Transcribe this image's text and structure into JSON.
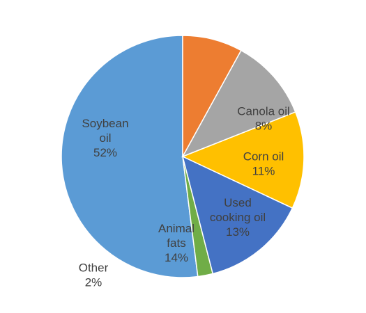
{
  "chart_data": {
    "type": "pie",
    "title": "",
    "start": "12 o'clock",
    "direction": "counterclockwise, starting with Soybean oil",
    "slices": [
      {
        "label_lines": [
          "Soybean",
          "oil"
        ],
        "value_text": "52%",
        "value": 52,
        "color": "#5b9bd5",
        "label_color": "#404040"
      },
      {
        "label_lines": [
          "Other"
        ],
        "value_text": "2%",
        "value": 2,
        "color": "#70ad47",
        "label_color": "#404040"
      },
      {
        "label_lines": [
          "Animal",
          "fats"
        ],
        "value_text": "14%",
        "value": 14,
        "color": "#4472c4",
        "label_color": "#404040"
      },
      {
        "label_lines": [
          "Used",
          "cooking oil"
        ],
        "value_text": "13%",
        "value": 13,
        "color": "#ffc000",
        "label_color": "#404040"
      },
      {
        "label_lines": [
          "Corn oil"
        ],
        "value_text": "11%",
        "value": 11,
        "color": "#a5a5a5",
        "label_color": "#404040"
      },
      {
        "label_lines": [
          "Canola oil"
        ],
        "value_text": "8%",
        "value": 8,
        "color": "#ed7d31",
        "label_color": "#404040"
      }
    ]
  }
}
